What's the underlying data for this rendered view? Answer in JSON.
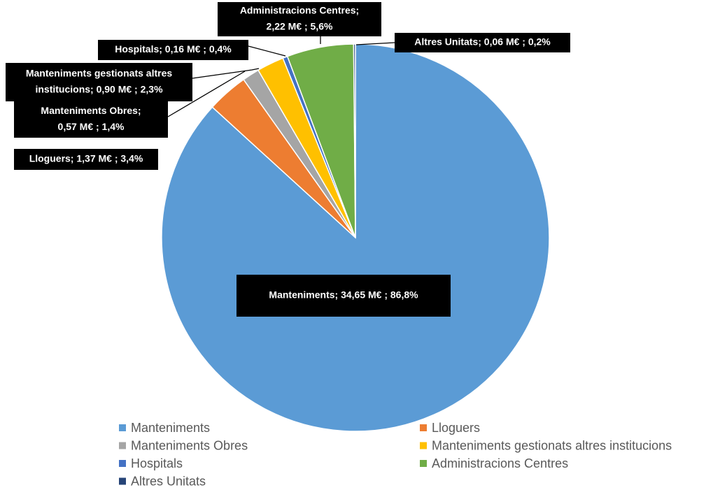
{
  "chart_data": {
    "type": "pie",
    "categories": [
      "Manteniments",
      "Lloguers",
      "Manteniments Obres",
      "Manteniments gestionats altres institucions",
      "Hospitals",
      "Administracions Centres",
      "Altres Unitats"
    ],
    "values": [
      34.65,
      1.37,
      0.57,
      0.9,
      0.16,
      2.22,
      0.06
    ],
    "value_labels": [
      [
        "Manteniments;  34,65 M€ ; 86,8%"
      ],
      [
        "Lloguers;  1,37 M€ ; 3,4%"
      ],
      [
        "Manteniments Obres;",
        "0,57 M€ ; 1,4%"
      ],
      [
        "Manteniments gestionats altres",
        "institucions;  0,90 M€ ; 2,3%"
      ],
      [
        "Hospitals;  0,16 M€ ; 0,4%"
      ],
      [
        "Administracions  Centres;",
        "2,22 M€ ; 5,6%"
      ],
      [
        "Altres Unitats;  0,06 M€ ; 0,2%"
      ]
    ],
    "colors": [
      "#5b9bd5",
      "#ed7d31",
      "#a5a5a5",
      "#ffc000",
      "#4472c4",
      "#70ad47",
      "#264478"
    ],
    "legend": "bottom"
  }
}
